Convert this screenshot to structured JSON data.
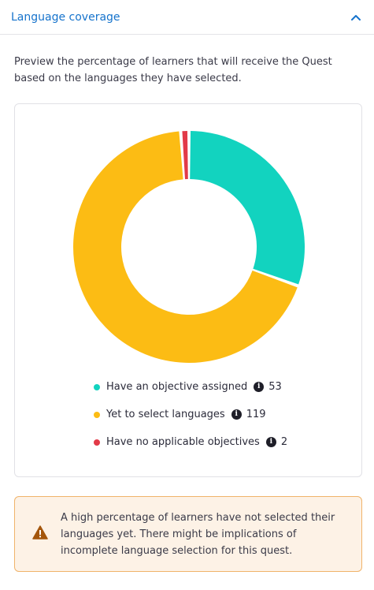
{
  "section": {
    "title": "Language coverage"
  },
  "description": "Preview the percentage of learners that will receive the Quest based on the languages they have selected.",
  "chart_data": {
    "type": "pie",
    "donut": true,
    "categories": [
      "Have an objective assigned",
      "Yet to select languages",
      "Have no applicable objectives"
    ],
    "values": [
      53,
      119,
      2
    ],
    "colors": [
      "#12d3bf",
      "#fcbc14",
      "#e23a48"
    ],
    "legend_position": "bottom"
  },
  "legend": [
    {
      "label": "Have an objective assigned",
      "value": "53",
      "color": "#12d3bf"
    },
    {
      "label": "Yet to select languages",
      "value": "119",
      "color": "#fcbc14"
    },
    {
      "label": "Have no applicable objectives",
      "value": "2",
      "color": "#e23a48"
    }
  ],
  "alert": {
    "icon": "warning-icon",
    "message": "A high percentage of learners have not selected their languages yet. There might be implications of incomplete language selection for this quest."
  }
}
